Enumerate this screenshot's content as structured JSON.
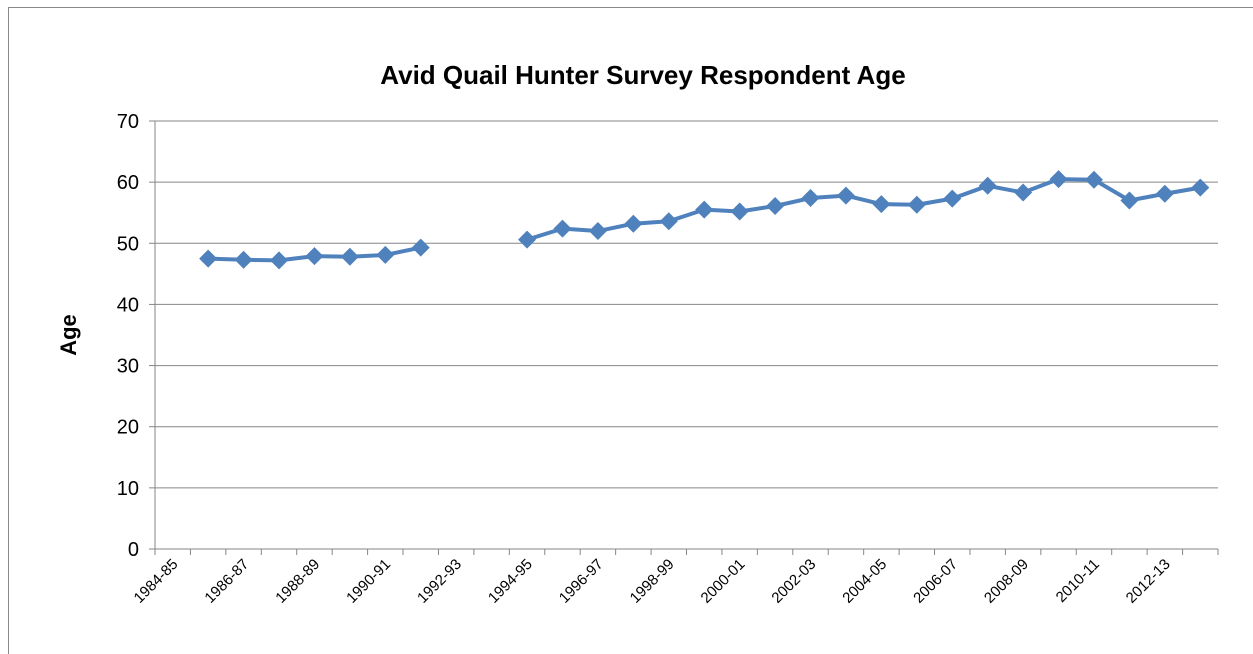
{
  "chart_data": {
    "type": "line",
    "title": "Avid Quail Hunter Survey Respondent Age",
    "y_label": "Age",
    "categories": [
      "1984-85",
      null,
      "1986-87",
      null,
      "1988-89",
      null,
      "1990-91",
      null,
      "1992-93",
      null,
      "1994-95",
      null,
      "1996-97",
      null,
      "1998-99",
      null,
      "2000-01",
      null,
      "2002-03",
      null,
      "2004-05",
      null,
      "2006-07",
      null,
      "2008-09",
      null,
      "2010-11",
      null,
      "2012-13",
      null
    ],
    "values": [
      null,
      47.5,
      47.3,
      47.2,
      47.9,
      47.8,
      48.1,
      49.3,
      null,
      null,
      50.6,
      52.4,
      52.0,
      53.2,
      53.6,
      55.5,
      55.2,
      56.1,
      57.4,
      57.8,
      56.4,
      56.3,
      57.3,
      59.4,
      58.3,
      60.5,
      60.4,
      57.0,
      58.1,
      59.1
    ],
    "color": "#4f81bd",
    "ylim": [
      0,
      70
    ],
    "yticks": [
      0,
      10,
      20,
      30,
      40,
      50,
      60,
      70
    ],
    "grid": true
  }
}
